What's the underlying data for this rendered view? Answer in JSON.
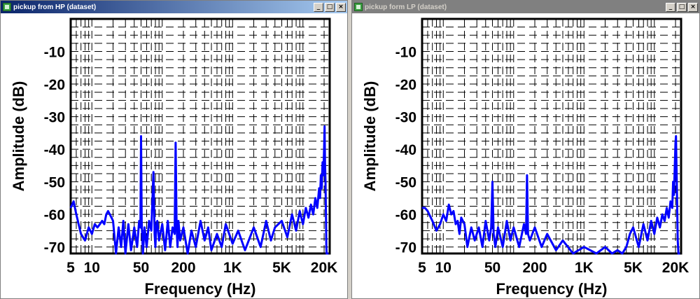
{
  "windows": [
    {
      "id": "hp",
      "title": "pickup from HP (dataset)",
      "active": true,
      "buttons": {
        "minimize": "_",
        "maximize": "□",
        "close": "×"
      },
      "chart_data": {
        "type": "line",
        "xlabel": "Frequency (Hz)",
        "ylabel": "Amplitude (dB)",
        "xscale": "log",
        "xlim": [
          5,
          24000
        ],
        "ylim": [
          -72,
          0
        ],
        "grid": true,
        "x_tick_labels": [
          "5",
          "10",
          "50",
          "200",
          "1K",
          "5K",
          "20K"
        ],
        "x_tick_values": [
          5,
          10,
          50,
          200,
          1000,
          5000,
          20000
        ],
        "y_tick_labels": [
          "-10",
          "-20",
          "-30",
          "-40",
          "-50",
          "-60",
          "-70"
        ],
        "y_tick_values": [
          -10,
          -20,
          -30,
          -40,
          -50,
          -60,
          -70
        ],
        "series": [
          {
            "color": "#0000ff",
            "x": [
              5,
              5.5,
              6,
              7,
              8,
              9,
              10,
              11,
              12,
              13,
              14,
              15,
              16,
              17,
              18,
              19,
              20,
              22,
              24,
              26,
              28,
              30,
              33,
              36,
              40,
              44,
              47,
              49,
              50,
              51,
              53,
              56,
              60,
              65,
              70,
              75,
              78,
              80,
              82,
              85,
              90,
              100,
              110,
              120,
              130,
              140,
              150,
              155,
              160,
              165,
              170,
              180,
              200,
              230,
              260,
              300,
              350,
              400,
              450,
              500,
              600,
              700,
              800,
              1000,
              1200,
              1500,
              2000,
              2500,
              3000,
              3500,
              4000,
              5000,
              6000,
              7000,
              8000,
              9000,
              10000,
              11000,
              12000,
              13000,
              14000,
              15000,
              16000,
              17000,
              17500,
              18000,
              18500,
              19000,
              19500,
              20000,
              20300,
              20600,
              20900,
              21100,
              21300,
              21500,
              21700,
              22000,
              22500,
              23000
            ],
            "y": [
              -58,
              -56,
              -60,
              -66,
              -68,
              -64,
              -66,
              -63,
              -64,
              -63,
              -62,
              -63,
              -60,
              -59,
              -60,
              -61,
              -62,
              -72,
              -64,
              -70,
              -62,
              -72,
              -63,
              -71,
              -64,
              -70,
              -62,
              -64,
              -36,
              -62,
              -72,
              -64,
              -70,
              -62,
              -65,
              -47,
              -66,
              -70,
              -64,
              -62,
              -68,
              -63,
              -71,
              -62,
              -70,
              -64,
              -66,
              -38,
              -64,
              -70,
              -62,
              -68,
              -64,
              -72,
              -65,
              -70,
              -62,
              -68,
              -64,
              -71,
              -66,
              -70,
              -63,
              -69,
              -65,
              -71,
              -64,
              -70,
              -62,
              -68,
              -64,
              -62,
              -67,
              -60,
              -65,
              -59,
              -63,
              -58,
              -61,
              -57,
              -60,
              -55,
              -58,
              -52,
              -55,
              -48,
              -52,
              -44,
              -48,
              -40,
              -33,
              -44,
              -50,
              -56,
              -62,
              -70,
              -72,
              -72,
              -72,
              -72
            ]
          }
        ]
      }
    },
    {
      "id": "lp",
      "title": "pickup form LP (dataset)",
      "active": false,
      "buttons": {
        "minimize": "_",
        "maximize": "□",
        "close": "×"
      },
      "chart_data": {
        "type": "line",
        "xlabel": "Frequency (Hz)",
        "ylabel": "Amplitude (dB)",
        "xscale": "log",
        "xlim": [
          5,
          24000
        ],
        "ylim": [
          -72,
          0
        ],
        "grid": true,
        "x_tick_labels": [
          "5",
          "10",
          "50",
          "200",
          "1K",
          "5K",
          "20K"
        ],
        "x_tick_values": [
          5,
          10,
          50,
          200,
          1000,
          5000,
          20000
        ],
        "y_tick_labels": [
          "-10",
          "-20",
          "-30",
          "-40",
          "-50",
          "-60",
          "-70"
        ],
        "y_tick_values": [
          -10,
          -20,
          -30,
          -40,
          -50,
          -60,
          -70
        ],
        "series": [
          {
            "color": "#0000ff",
            "x": [
              5,
              5.5,
              6,
              7,
              8,
              9,
              10,
              11,
              12,
              13,
              14,
              15,
              16,
              17,
              18,
              20,
              22,
              25,
              28,
              32,
              36,
              40,
              45,
              48,
              50,
              52,
              55,
              60,
              70,
              80,
              90,
              100,
              120,
              140,
              150,
              155,
              160,
              170,
              200,
              250,
              300,
              400,
              500,
              700,
              1000,
              1500,
              2000,
              2500,
              3000,
              3500,
              4000,
              4500,
              5000,
              6000,
              7000,
              8000,
              9000,
              10000,
              11000,
              12000,
              13000,
              14000,
              15000,
              16000,
              17000,
              18000,
              18500,
              19000,
              19500,
              20000,
              20300,
              20600,
              20900,
              21200,
              21500,
              22000,
              23000
            ],
            "y": [
              -58,
              -58,
              -59,
              -62,
              -65,
              -63,
              -60,
              -62,
              -57,
              -60,
              -59,
              -63,
              -62,
              -66,
              -61,
              -63,
              -70,
              -64,
              -68,
              -64,
              -70,
              -62,
              -68,
              -64,
              -50,
              -66,
              -70,
              -64,
              -70,
              -62,
              -68,
              -64,
              -70,
              -63,
              -66,
              -48,
              -66,
              -68,
              -64,
              -70,
              -66,
              -71,
              -68,
              -72,
              -70,
              -72,
              -70,
              -72,
              -71,
              -72,
              -70,
              -66,
              -64,
              -70,
              -63,
              -68,
              -62,
              -66,
              -61,
              -64,
              -60,
              -62,
              -58,
              -61,
              -56,
              -58,
              -50,
              -54,
              -46,
              -38,
              -36,
              -44,
              -52,
              -60,
              -68,
              -72,
              -72
            ]
          }
        ]
      }
    }
  ]
}
